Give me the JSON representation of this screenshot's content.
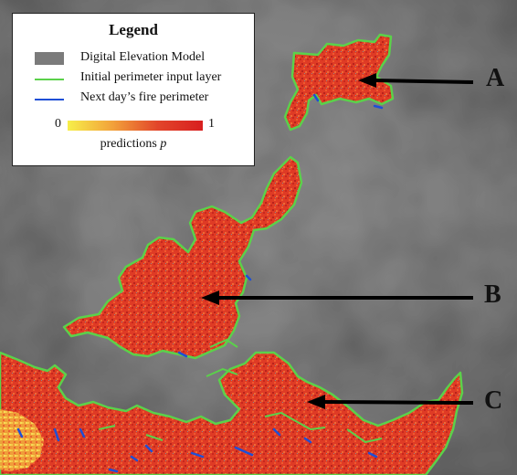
{
  "legend": {
    "title": "Legend",
    "items": [
      {
        "label": "Digital Elevation Model",
        "color": "#7b7b7b"
      },
      {
        "label": "Initial perimeter input layer",
        "color": "#5bd14a"
      },
      {
        "label": "Next day’s fire perimeter",
        "color": "#1e4fd6"
      }
    ],
    "colorbar": {
      "min_label": "0",
      "max_label": "1",
      "label": "predictions p",
      "colors": [
        "#f7ef4a",
        "#f2a13a",
        "#e2452a",
        "#d81f1f"
      ]
    }
  },
  "markers": [
    {
      "label": "A"
    },
    {
      "label": "B"
    },
    {
      "label": "C"
    }
  ],
  "colors": {
    "dem": "#7b7b7b",
    "fire": "#e2452a",
    "perimeter_initial": "#5bd14a",
    "perimeter_next": "#1e4fd6"
  }
}
